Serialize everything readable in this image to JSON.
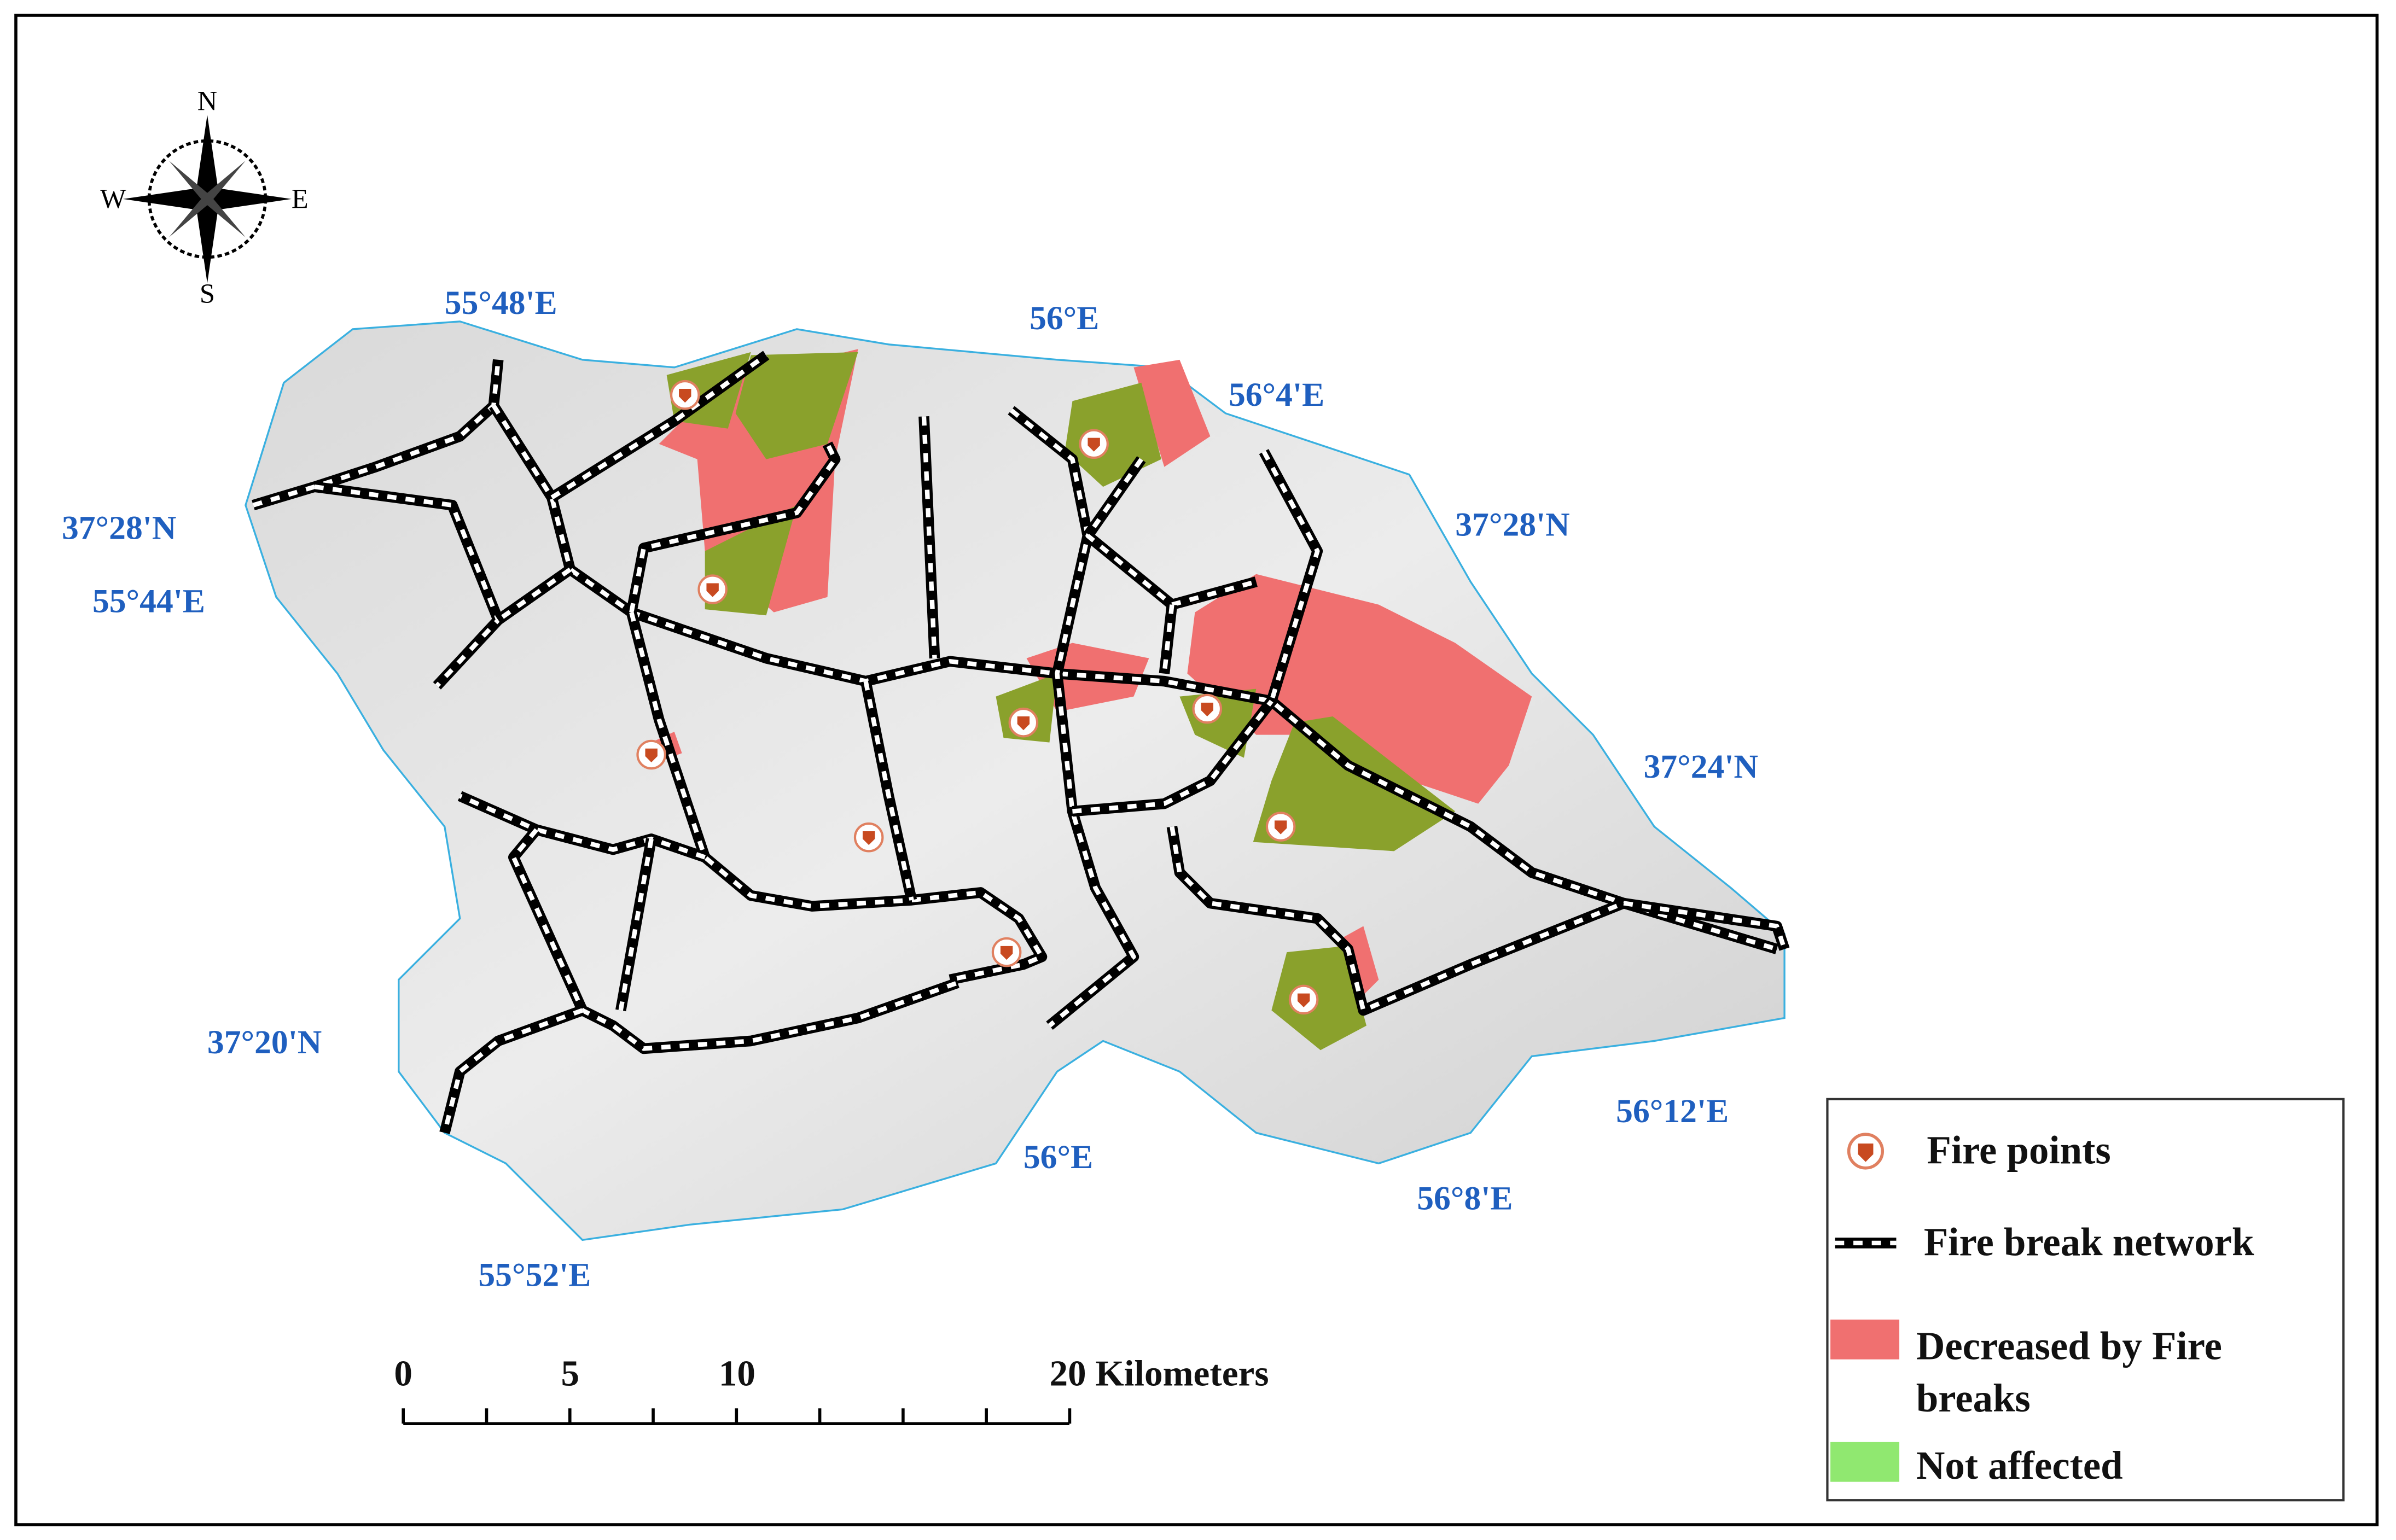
{
  "compass": {
    "north": "N",
    "east": "E",
    "south": "S",
    "west": "W"
  },
  "graticule_labels": [
    "55°48'E",
    "56°E",
    "56°4'E",
    "37°28'N",
    "55°44'E",
    "37°28'N",
    "37°24'N",
    "37°20'N",
    "56°12'E",
    "56°E",
    "56°8'E",
    "55°52'E"
  ],
  "scale_bar": {
    "labels": [
      "0",
      "5",
      "10",
      "20 Kilometers"
    ]
  },
  "legend": {
    "items": [
      "Fire points",
      "Fire break network",
      "Decreased by Fire breaks",
      "Not affected"
    ]
  }
}
